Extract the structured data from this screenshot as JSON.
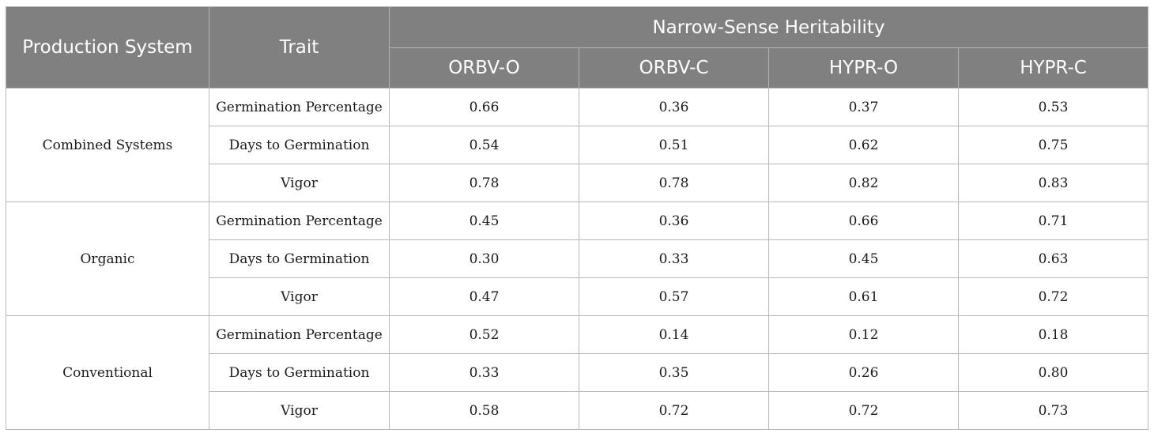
{
  "header": {
    "production_system": "Production System",
    "trait": "Trait",
    "group": "Narrow-Sense Heritability",
    "columns": [
      "ORBV-O",
      "ORBV-C",
      "HYPR-O",
      "HYPR-C"
    ]
  },
  "groups": [
    {
      "system": "Combined Systems",
      "rows": [
        {
          "trait": "Germination Percentage",
          "values": [
            "0.66",
            "0.36",
            "0.37",
            "0.53"
          ]
        },
        {
          "trait": "Days to Germination",
          "values": [
            "0.54",
            "0.51",
            "0.62",
            "0.75"
          ]
        },
        {
          "trait": "Vigor",
          "values": [
            "0.78",
            "0.78",
            "0.82",
            "0.83"
          ]
        }
      ]
    },
    {
      "system": "Organic",
      "rows": [
        {
          "trait": "Germination Percentage",
          "values": [
            "0.45",
            "0.36",
            "0.66",
            "0.71"
          ]
        },
        {
          "trait": "Days to Germination",
          "values": [
            "0.30",
            "0.33",
            "0.45",
            "0.63"
          ]
        },
        {
          "trait": "Vigor",
          "values": [
            "0.47",
            "0.57",
            "0.61",
            "0.72"
          ]
        }
      ]
    },
    {
      "system": "Conventional",
      "rows": [
        {
          "trait": "Germination Percentage",
          "values": [
            "0.52",
            "0.14",
            "0.12",
            "0.18"
          ]
        },
        {
          "trait": "Days to Germination",
          "values": [
            "0.33",
            "0.35",
            "0.26",
            "0.80"
          ]
        },
        {
          "trait": "Vigor",
          "values": [
            "0.58",
            "0.72",
            "0.72",
            "0.73"
          ]
        }
      ]
    }
  ]
}
